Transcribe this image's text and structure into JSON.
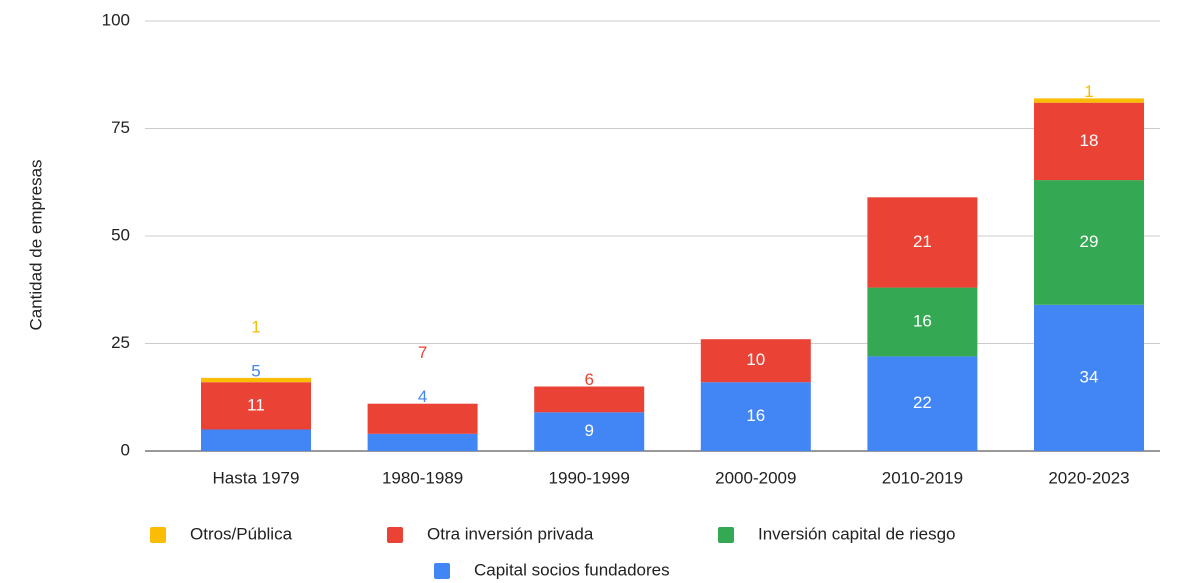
{
  "chart_data": {
    "type": "stacked_bar",
    "y_axis_label": "Cantidad de empresas",
    "categories": [
      "Hasta 1979",
      "1980-1989",
      "1990-1999",
      "2000-2009",
      "2010-2019",
      "2020-2023"
    ],
    "series": [
      {
        "name": "Capital socios fundadores",
        "color": "#4285f4",
        "values": [
          5,
          4,
          9,
          16,
          22,
          34
        ]
      },
      {
        "name": "Inversión capital de riesgo",
        "color": "#34a853",
        "values": [
          null,
          null,
          null,
          null,
          16,
          29
        ]
      },
      {
        "name": "Otra inversión privada",
        "color": "#ea4335",
        "values": [
          11,
          7,
          6,
          10,
          21,
          18
        ]
      },
      {
        "name": "Otros/Pública",
        "color": "#fbbc04",
        "values": [
          1,
          null,
          null,
          null,
          null,
          1
        ]
      }
    ],
    "ylim": [
      0,
      100
    ],
    "yticks": [
      0,
      25,
      50,
      75,
      100
    ],
    "grid": true
  }
}
